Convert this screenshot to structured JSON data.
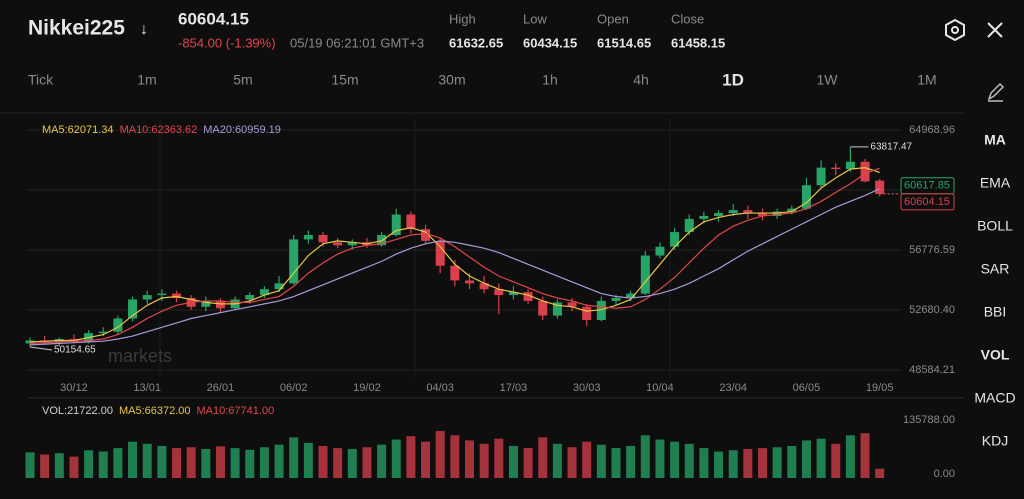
{
  "header": {
    "symbol": "Nikkei225",
    "direction": "↓",
    "price": "60604.15",
    "change": "-854.00 (-1.39%)",
    "time": "05/19 06:21:01 GMT+3",
    "stats": [
      {
        "label": "High",
        "value": "61632.65"
      },
      {
        "label": "Low",
        "value": "60434.15"
      },
      {
        "label": "Open",
        "value": "61514.65"
      },
      {
        "label": "Close",
        "value": "61458.15"
      }
    ]
  },
  "timeframes": [
    "Tick",
    "1m",
    "5m",
    "15m",
    "30m",
    "1h",
    "4h",
    "1D",
    "1W",
    "1M"
  ],
  "active_timeframe": 7,
  "indicators": [
    "MA",
    "EMA",
    "BOLL",
    "SAR",
    "BBI",
    "VOL",
    "MACD",
    "KDJ"
  ],
  "bold_indicators": [
    0,
    5
  ],
  "watermark": "markets",
  "chart_data": [
    {
      "type": "candlestick",
      "up_color": "#27a567",
      "down_color": "#d8404c",
      "categories": [
        null,
        null,
        null,
        "30/12",
        null,
        null,
        null,
        null,
        "13/01",
        null,
        null,
        null,
        null,
        "26/01",
        null,
        null,
        null,
        null,
        "06/02",
        null,
        null,
        null,
        null,
        "19/02",
        null,
        null,
        null,
        null,
        "04/03",
        null,
        null,
        null,
        null,
        "17/03",
        null,
        null,
        null,
        null,
        "30/03",
        null,
        null,
        null,
        null,
        "10/04",
        null,
        null,
        null,
        null,
        "23/04",
        null,
        null,
        null,
        null,
        "06/05",
        null,
        null,
        null,
        null,
        "19/05"
      ],
      "ohlc": [
        [
          50400,
          50800,
          50154.65,
          50600
        ],
        [
          50600,
          50900,
          50300,
          50500
        ],
        [
          50500,
          50800,
          50200,
          50700
        ],
        [
          50700,
          51000,
          50400,
          50500
        ],
        [
          50500,
          51300,
          50400,
          51100
        ],
        [
          51100,
          51500,
          50900,
          51200
        ],
        [
          51200,
          52300,
          51000,
          52100
        ],
        [
          52100,
          53600,
          51900,
          53400
        ],
        [
          53400,
          54000,
          53100,
          53700
        ],
        [
          53700,
          54100,
          53300,
          53800
        ],
        [
          53800,
          54000,
          53200,
          53500
        ],
        [
          53500,
          53700,
          52700,
          52900
        ],
        [
          52900,
          53600,
          52600,
          53300
        ],
        [
          53300,
          53500,
          52500,
          52800
        ],
        [
          52800,
          53600,
          52700,
          53400
        ],
        [
          53400,
          53900,
          53100,
          53700
        ],
        [
          53700,
          54300,
          53500,
          54100
        ],
        [
          54100,
          55000,
          53900,
          54500
        ],
        [
          54500,
          57800,
          54400,
          57500
        ],
        [
          57500,
          58100,
          57200,
          57800
        ],
        [
          57800,
          58000,
          57000,
          57300
        ],
        [
          57300,
          57600,
          56900,
          57100
        ],
        [
          57100,
          57500,
          56800,
          57300
        ],
        [
          57300,
          57600,
          56900,
          57100
        ],
        [
          57100,
          58000,
          57000,
          57800
        ],
        [
          57800,
          59600,
          57700,
          59200
        ],
        [
          59200,
          59400,
          57900,
          58200
        ],
        [
          58200,
          58500,
          57200,
          57400
        ],
        [
          57400,
          57600,
          55200,
          55700
        ],
        [
          55700,
          56100,
          54300,
          54700
        ],
        [
          54700,
          55200,
          54100,
          54500
        ],
        [
          54500,
          55000,
          53800,
          54100
        ],
        [
          54100,
          54500,
          52400,
          53700
        ],
        [
          53700,
          54300,
          53400,
          53900
        ],
        [
          53900,
          54100,
          53100,
          53300
        ],
        [
          53300,
          53600,
          52000,
          52300
        ],
        [
          52300,
          53400,
          52100,
          53200
        ],
        [
          53200,
          53500,
          52600,
          52900
        ],
        [
          52900,
          53100,
          51600,
          52000
        ],
        [
          52000,
          53600,
          51900,
          53300
        ],
        [
          53300,
          53700,
          53000,
          53500
        ],
        [
          53500,
          54000,
          53300,
          53800
        ],
        [
          53800,
          56700,
          53700,
          56400
        ],
        [
          56400,
          57300,
          56200,
          57000
        ],
        [
          57000,
          58300,
          56800,
          58000
        ],
        [
          58000,
          59200,
          57800,
          58900
        ],
        [
          58900,
          59400,
          58600,
          59100
        ],
        [
          59100,
          59500,
          58700,
          59300
        ],
        [
          59300,
          59900,
          59100,
          59500
        ],
        [
          59500,
          59800,
          58900,
          59300
        ],
        [
          59300,
          59600,
          58800,
          59100
        ],
        [
          59100,
          59600,
          58900,
          59400
        ],
        [
          59400,
          59800,
          59200,
          59600
        ],
        [
          59600,
          61700,
          59500,
          61200
        ],
        [
          61200,
          62900,
          61000,
          62400
        ],
        [
          62400,
          62700,
          61900,
          62300
        ],
        [
          62300,
          63817.47,
          62100,
          62800
        ],
        [
          62800,
          63000,
          61400,
          61458.15
        ],
        [
          61514.65,
          61632.65,
          60434.15,
          60604.15
        ]
      ],
      "series": [
        {
          "name": "MA5:62071.34",
          "color": "#e8c547",
          "values": [
            50500,
            50550,
            50600,
            50600,
            50800,
            51000,
            51500,
            52300,
            53000,
            53500,
            53600,
            53400,
            53200,
            53100,
            53100,
            53300,
            53700,
            54000,
            55200,
            56400,
            57200,
            57400,
            57300,
            57200,
            57400,
            58100,
            58300,
            58000,
            57000,
            55800,
            55000,
            54500,
            54100,
            53900,
            53700,
            53300,
            53000,
            52900,
            52600,
            52700,
            53000,
            53400,
            54600,
            55800,
            57000,
            58000,
            58700,
            59000,
            59200,
            59300,
            59300,
            59300,
            59400,
            60000,
            61000,
            61700,
            62300,
            62400,
            62071.34
          ]
        },
        {
          "name": "MA10:62363.62",
          "color": "#e0464e",
          "values": [
            50400,
            50450,
            50500,
            50550,
            50600,
            50700,
            51000,
            51500,
            52100,
            52600,
            53000,
            53200,
            53300,
            53300,
            53200,
            53200,
            53400,
            53600,
            54300,
            55200,
            55900,
            56500,
            56900,
            57100,
            57200,
            57500,
            57800,
            57900,
            57600,
            57000,
            56300,
            55600,
            55000,
            54600,
            54200,
            53800,
            53500,
            53300,
            53000,
            52900,
            52800,
            52900,
            53400,
            54100,
            54900,
            55900,
            56900,
            57800,
            58400,
            58800,
            59100,
            59200,
            59300,
            59600,
            60100,
            60700,
            61300,
            62000,
            62363.62
          ]
        },
        {
          "name": "MA20:60959.19",
          "color": "#a99ad8",
          "values": [
            50300,
            50350,
            50400,
            50450,
            50500,
            50550,
            50700,
            50900,
            51200,
            51500,
            51800,
            52100,
            52300,
            52500,
            52700,
            52900,
            53100,
            53300,
            53600,
            54000,
            54400,
            54800,
            55200,
            55600,
            56000,
            56500,
            56900,
            57200,
            57400,
            57300,
            57100,
            56900,
            56600,
            56200,
            55800,
            55400,
            55000,
            54600,
            54200,
            53800,
            53600,
            53500,
            53600,
            53800,
            54100,
            54500,
            55000,
            55500,
            56100,
            56700,
            57200,
            57700,
            58200,
            58700,
            59200,
            59700,
            60100,
            60500,
            60959.19
          ]
        }
      ],
      "ylim": [
        48584.21,
        64968.96
      ],
      "yticks": [
        {
          "value": 64968.96,
          "label": "64968.96"
        },
        {
          "value": 56776.59,
          "label": "56776.59"
        },
        {
          "value": 52680.4,
          "label": "52680.40"
        },
        {
          "value": 48584.21,
          "label": "48584.21"
        }
      ],
      "annotations": [
        {
          "text": "63817.47",
          "value": 63817.47,
          "index": 56
        },
        {
          "text": "50154.65",
          "value": 50154.65,
          "index": 0
        }
      ],
      "price_badges": [
        {
          "text": "60617.85",
          "value": 60617.85,
          "color": "#27a567"
        },
        {
          "text": "60604.15",
          "value": 60604.15,
          "color": "#d8404c"
        }
      ]
    },
    {
      "type": "volume",
      "legend": [
        {
          "name": "VOL:21722.00",
          "color": "#d0d0d0"
        },
        {
          "name": "MA5:66372.00",
          "color": "#e8c547"
        },
        {
          "name": "MA10:67741.00",
          "color": "#e0464e"
        }
      ],
      "values": [
        60000,
        55000,
        58000,
        50000,
        65000,
        62000,
        70000,
        85000,
        80000,
        75000,
        70000,
        72000,
        68000,
        74000,
        70000,
        66000,
        72000,
        78000,
        95000,
        82000,
        75000,
        70000,
        68000,
        72000,
        78000,
        90000,
        98000,
        85000,
        110000,
        100000,
        88000,
        80000,
        92000,
        75000,
        70000,
        95000,
        80000,
        72000,
        85000,
        78000,
        70000,
        75000,
        100000,
        90000,
        85000,
        80000,
        70000,
        62000,
        65000,
        68000,
        70000,
        72000,
        75000,
        88000,
        92000,
        80000,
        100000,
        105000,
        21722
      ],
      "ylim": [
        0,
        135788
      ],
      "yticks": [
        {
          "value": 135788,
          "label": "135788.00"
        },
        {
          "value": 0,
          "label": "0.00"
        }
      ]
    }
  ]
}
